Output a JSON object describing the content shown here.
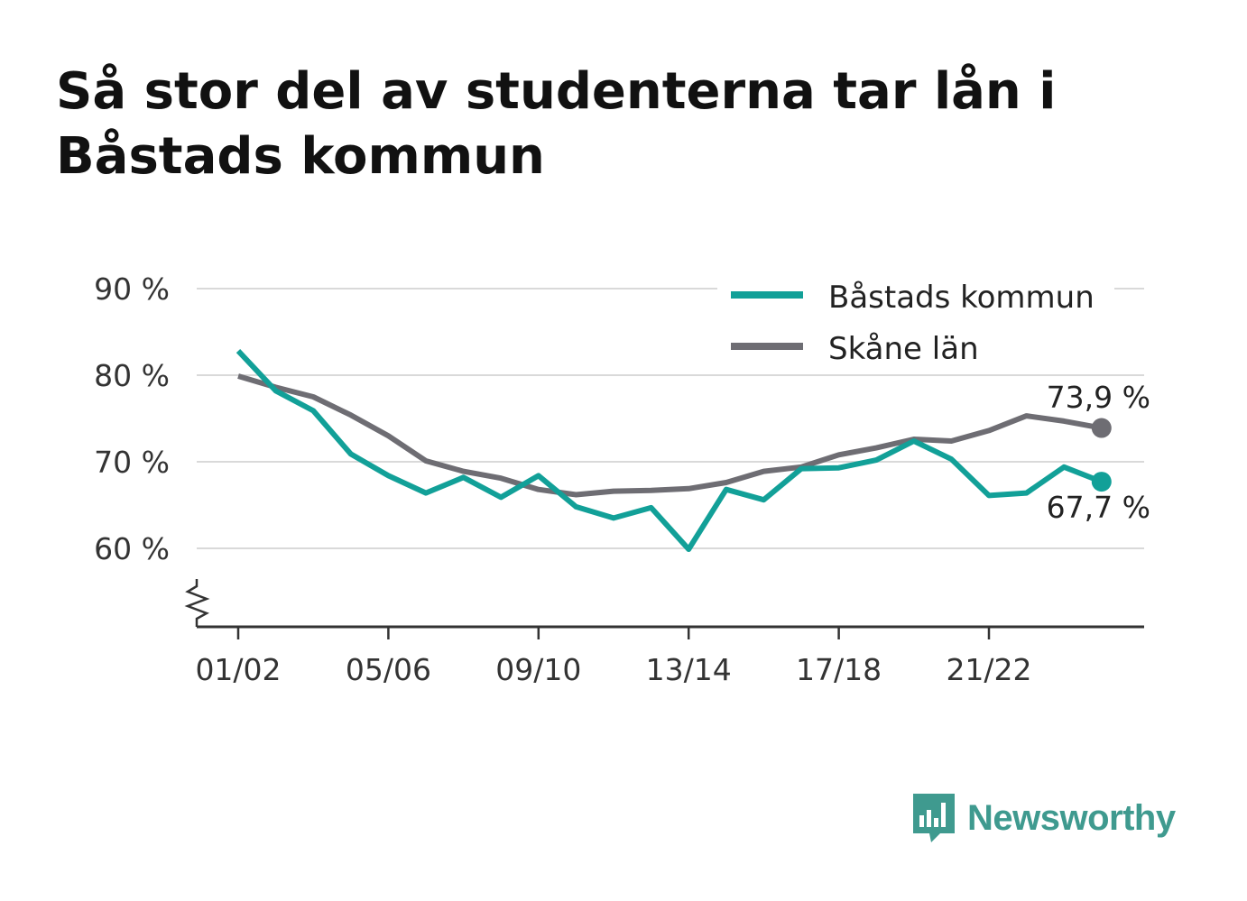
{
  "title": "Så stor del av studenterna tar lån i Båstads kommun",
  "brand": {
    "name": "Newsworthy",
    "color": "#3f9a8f",
    "icon": "bar-chart-speech-bubble-icon"
  },
  "chart_data": {
    "type": "line",
    "x": [
      "01/02",
      "02/03",
      "03/04",
      "04/05",
      "05/06",
      "06/07",
      "07/08",
      "08/09",
      "09/10",
      "10/11",
      "11/12",
      "12/13",
      "13/14",
      "14/15",
      "15/16",
      "16/17",
      "17/18",
      "18/19",
      "19/20",
      "20/21",
      "21/22",
      "22/23",
      "23/24",
      "24/25"
    ],
    "x_ticks": [
      "01/02",
      "05/06",
      "09/10",
      "13/14",
      "17/18",
      "21/22"
    ],
    "y_ticks": [
      "90 %",
      "80 %",
      "70 %",
      "60 %"
    ],
    "y_tick_values": [
      90,
      80,
      70,
      60
    ],
    "ylim": [
      51,
      92
    ],
    "axis_break": true,
    "grid": true,
    "legend_position": "top-right",
    "series": [
      {
        "name": "Båstads kommun",
        "color": "#12a098",
        "values": [
          82.8,
          78.2,
          75.9,
          70.9,
          68.4,
          66.4,
          68.2,
          65.9,
          68.4,
          64.8,
          63.5,
          64.7,
          59.9,
          66.8,
          65.6,
          69.2,
          69.3,
          70.2,
          72.4,
          70.3,
          66.1,
          66.4,
          69.4,
          67.7
        ],
        "end_label": "67,7 %"
      },
      {
        "name": "Skåne län",
        "color": "#6e6d73",
        "values": [
          79.9,
          78.6,
          77.5,
          75.4,
          73.0,
          70.1,
          68.9,
          68.1,
          66.8,
          66.2,
          66.6,
          66.7,
          66.9,
          67.6,
          68.9,
          69.4,
          70.8,
          71.6,
          72.6,
          72.4,
          73.6,
          75.3,
          74.7,
          73.9
        ],
        "end_label": "73,9 %"
      }
    ]
  }
}
